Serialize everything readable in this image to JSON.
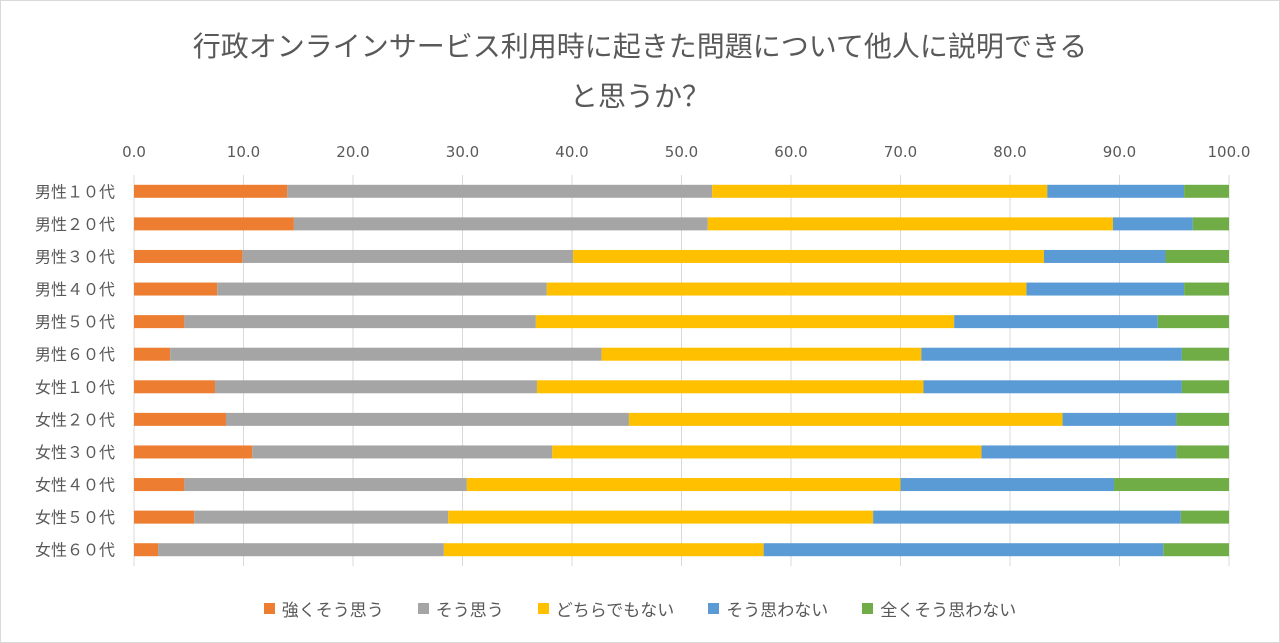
{
  "chart_data": {
    "type": "bar",
    "orientation": "horizontal",
    "stacked": true,
    "title_line1": "行政オンラインサービス利用時に起きた問題について他人に説明できる",
    "title_line2": "と思うか？",
    "xlim": [
      0,
      100
    ],
    "x_ticks": [
      "0.0",
      "10.0",
      "20.0",
      "30.0",
      "40.0",
      "50.0",
      "60.0",
      "70.0",
      "80.0",
      "90.0",
      "100.0"
    ],
    "x_axis_position": "top",
    "gridlines": true,
    "legend_position": "bottom",
    "categories": [
      "男性１０代",
      "男性２０代",
      "男性３０代",
      "男性４０代",
      "男性５０代",
      "男性６０代",
      "女性１０代",
      "女性２０代",
      "女性３０代",
      "女性４０代",
      "女性５０代",
      "女性６０代"
    ],
    "series": [
      {
        "name": "強くそう思う",
        "color": "#ED7D31",
        "values": [
          14.0,
          14.6,
          9.9,
          7.6,
          4.6,
          3.3,
          7.4,
          8.4,
          10.8,
          4.6,
          5.5,
          2.2
        ]
      },
      {
        "name": "そう思う",
        "color": "#A5A5A5",
        "values": [
          38.8,
          37.8,
          30.2,
          30.1,
          32.1,
          39.4,
          29.4,
          36.8,
          27.4,
          25.8,
          23.2,
          26.1
        ]
      },
      {
        "name": "どちらでもない",
        "color": "#FFC000",
        "values": [
          30.6,
          37.0,
          43.0,
          43.8,
          38.2,
          29.2,
          35.3,
          39.6,
          39.2,
          39.6,
          38.8,
          29.2
        ]
      },
      {
        "name": "そう思わない",
        "color": "#5B9BD5",
        "values": [
          12.5,
          7.3,
          11.1,
          14.4,
          18.6,
          23.8,
          23.6,
          10.4,
          17.8,
          19.5,
          28.1,
          36.5
        ]
      },
      {
        "name": "全くそう思わない",
        "color": "#70AD47",
        "values": [
          4.1,
          3.3,
          5.8,
          4.1,
          6.5,
          4.3,
          4.3,
          4.8,
          4.8,
          10.5,
          4.4,
          6.0
        ]
      }
    ]
  }
}
